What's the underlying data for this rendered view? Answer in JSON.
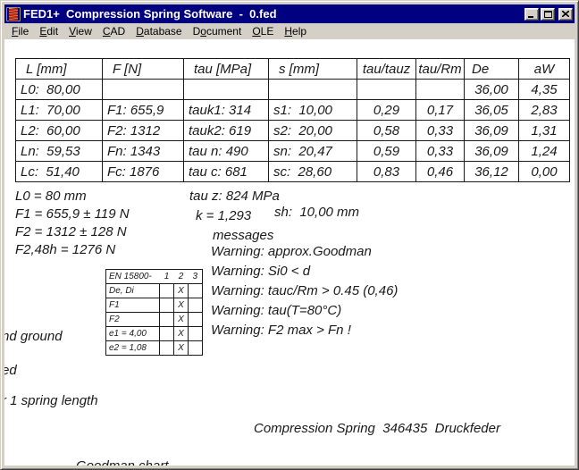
{
  "window": {
    "title": "FED1+  Compression Spring Software  -  0.fed",
    "icon": "spring-icon",
    "controls": [
      {
        "name": "minimize",
        "icon": "minimize-icon"
      },
      {
        "name": "maximize",
        "icon": "maximize-icon"
      },
      {
        "name": "close",
        "icon": "close-icon"
      }
    ]
  },
  "menu": {
    "items": [
      {
        "label": "File",
        "underline": 0
      },
      {
        "label": "Edit",
        "underline": 0
      },
      {
        "label": "View",
        "underline": 0
      },
      {
        "label": "CAD",
        "underline": 0
      },
      {
        "label": "Database",
        "underline": 0
      },
      {
        "label": "Document",
        "underline": 1
      },
      {
        "label": "OLE",
        "underline": 0
      },
      {
        "label": "Help",
        "underline": 0
      }
    ]
  },
  "results_table": {
    "headers": [
      "L [mm]",
      "F [N]",
      "tau [MPa]",
      "s [mm]",
      "tau/tauz",
      "tau/Rm",
      "De",
      "aW"
    ],
    "rows": [
      [
        "L0:  80,00",
        "",
        "",
        "",
        "",
        "",
        "36,00",
        "4,35"
      ],
      [
        "L1:  70,00",
        "F1: 655,9",
        "tauk1: 314",
        "s1:  10,00",
        "0,29",
        "0,17",
        "36,05",
        "2,83"
      ],
      [
        "L2:  60,00",
        "F2: 1312",
        "tauk2: 619",
        "s2:  20,00",
        "0,58",
        "0,33",
        "36,09",
        "1,31"
      ],
      [
        "Ln:  59,53",
        "Fn: 1343",
        "tau n: 490",
        "sn:  20,47",
        "0,59",
        "0,33",
        "36,09",
        "1,24"
      ],
      [
        "Lc:  51,40",
        "Fc: 1876",
        "tau c: 681",
        "sc:  28,60",
        "0,83",
        "0,46",
        "36,12",
        "0,00"
      ]
    ]
  },
  "summary": {
    "l0": "L0 = 80 mm",
    "f1": "F1 = 655,9 ± 119 N",
    "f2": "F2 = 1312 ± 128 N",
    "f2_48h": "F2,48h = 1276 N",
    "tau_z": "tau z: 824 MPa",
    "k": "k = 1,293",
    "sh": "sh:  10,00 mm"
  },
  "messages": {
    "heading": "messages",
    "warnings": [
      "Warning: approx.Goodman",
      "Warning: Si0 < d",
      "Warning: tauc/Rm > 0.45 (0,46)",
      "Warning: tau(T=80°C)",
      "Warning: F2 max > Fn !"
    ]
  },
  "en15800_table": {
    "title": "EN 15800-",
    "grade_columns": [
      "1",
      "2",
      "3"
    ],
    "rows": [
      {
        "label": "De, Di",
        "marks": [
          "",
          "X",
          ""
        ]
      },
      {
        "label": "F1",
        "marks": [
          "",
          "X",
          ""
        ]
      },
      {
        "label": "F2",
        "marks": [
          "",
          "X",
          ""
        ]
      },
      {
        "label": "e1 = 4,00",
        "marks": [
          "",
          "X",
          ""
        ]
      },
      {
        "label": "e2 = 1,08",
        "marks": [
          "",
          "X",
          ""
        ]
      }
    ]
  },
  "clipped_text": {
    "line1": "nd ground",
    "line2": "ed",
    "line3": "r 1 spring length"
  },
  "footer": {
    "drawing_title": "Compression Spring  346435  Druckfeder",
    "next_section": "Goodman chart"
  },
  "colors": {
    "titlebar_blue": "#000080",
    "chrome_gray": "#d4d0c8",
    "document_ink": "#1a1a1a",
    "icon_red": "#dd2200"
  }
}
